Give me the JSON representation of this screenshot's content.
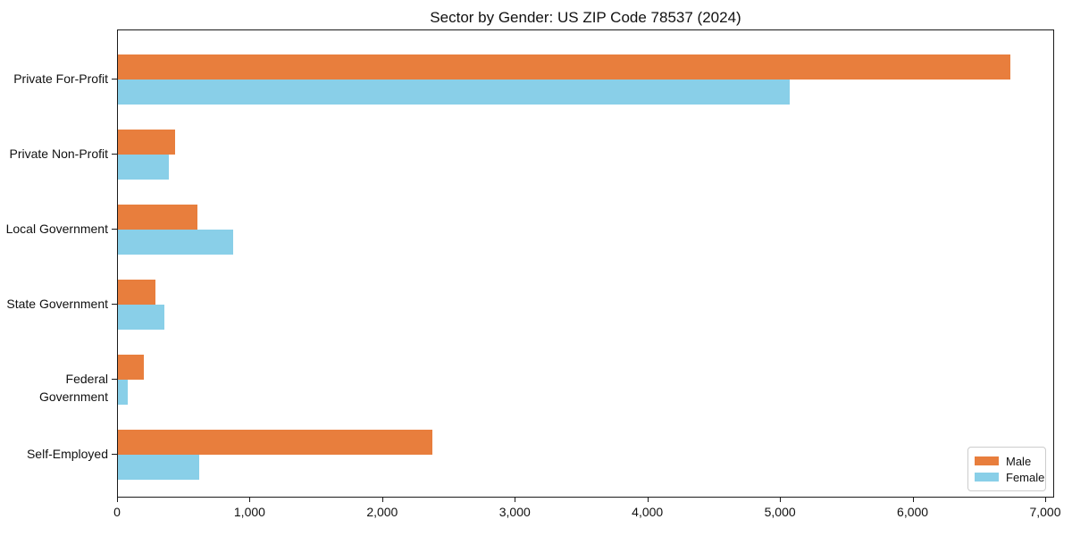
{
  "title": "Sector by Gender: US ZIP Code 78537 (2024)",
  "chart_data": {
    "type": "bar",
    "orientation": "horizontal",
    "title": "Sector by Gender: US ZIP Code 78537 (2024)",
    "xlabel": "",
    "ylabel": "",
    "categories": [
      "Private For-Profit",
      "Private Non-Profit",
      "Local Government",
      "State Government",
      "Federal Government",
      "Self-Employed"
    ],
    "series": [
      {
        "name": "Male",
        "color": "#e87e3d",
        "values": [
          6730,
          430,
          600,
          285,
          195,
          2370
        ]
      },
      {
        "name": "Female",
        "color": "#89cfe8",
        "values": [
          5065,
          385,
          870,
          350,
          75,
          615
        ]
      }
    ],
    "xlim": [
      0,
      7000
    ],
    "xticks": [
      0,
      1000,
      2000,
      3000,
      4000,
      5000,
      6000,
      7000
    ],
    "xtick_labels": [
      "0",
      "1,000",
      "2,000",
      "3,000",
      "4,000",
      "5,000",
      "6,000",
      "7,000"
    ],
    "grid": false,
    "legend": {
      "position": "lower right",
      "entries": [
        "Male",
        "Female"
      ]
    }
  }
}
